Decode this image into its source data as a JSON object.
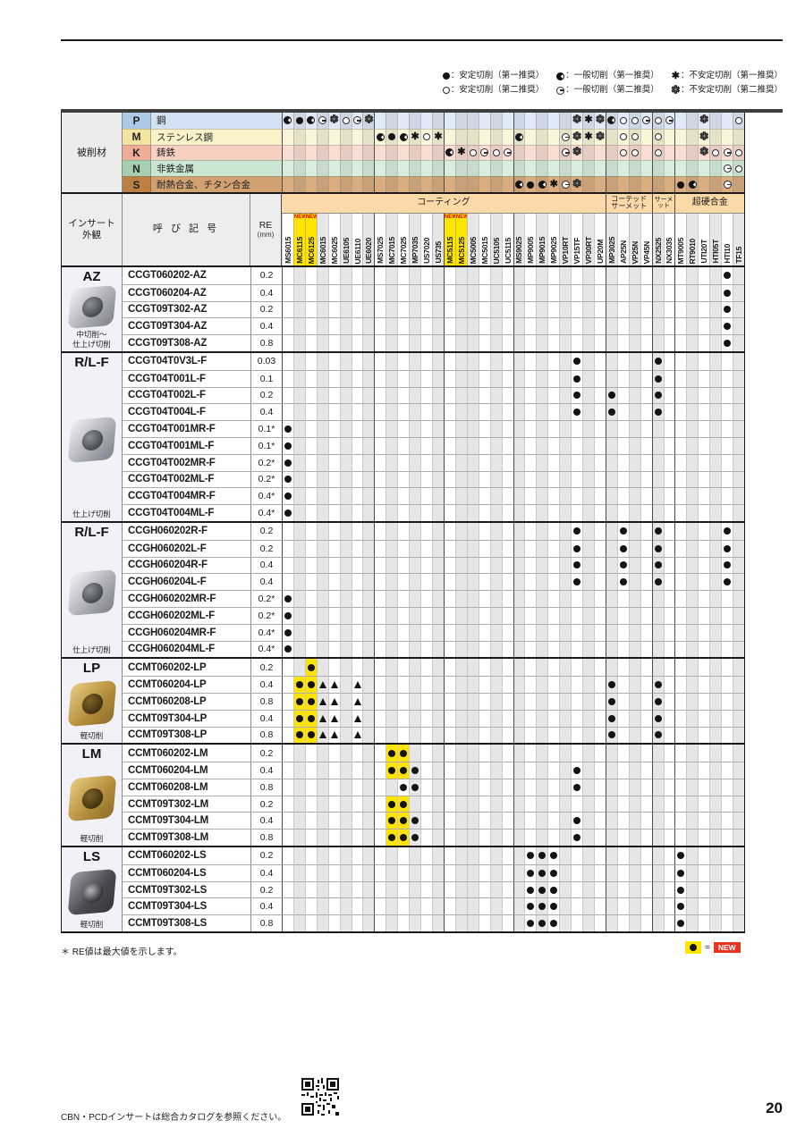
{
  "page": {
    "page_number": "20",
    "footer_note": "CBN・PCDインサートは総合カタログを参照ください。",
    "re_note": "＊ RE値は最大値を示します。",
    "new_key": {
      "eq": "=",
      "label": "NEW"
    }
  },
  "legend": {
    "rows": [
      [
        {
          "s": "s1",
          "t": "：安定切削（第一推奨）"
        },
        {
          "s": "g1",
          "t": "：一般切削（第一推奨）"
        },
        {
          "s": "u1",
          "t": "：不安定切削（第一推奨）"
        }
      ],
      [
        {
          "s": "s2",
          "t": "：安定切削（第二推奨）"
        },
        {
          "s": "g2",
          "t": "：一般切削（第二推奨）"
        },
        {
          "s": "u2",
          "t": "：不安定切削（第二推奨）"
        }
      ]
    ]
  },
  "headers": {
    "work_material": "被削材",
    "appearance": "インサート\n外観",
    "designation": "呼 び 記 号",
    "re": "RE",
    "re_unit": "(mm)"
  },
  "columns": {
    "new_tag": "NEW",
    "group_headers": [
      {
        "label": "コーティング",
        "span": 28,
        "size": "big"
      },
      {
        "label": "コーテッド\nサーメット",
        "span": 4,
        "size": "small2"
      },
      {
        "label": "サーメット",
        "span": 2,
        "size": "small1"
      },
      {
        "label": "超硬合金",
        "span": 6,
        "size": "big"
      }
    ],
    "grades": [
      {
        "name": "MS6015"
      },
      {
        "name": "MC6115",
        "new": true
      },
      {
        "name": "MC6125",
        "new": true
      },
      {
        "name": "MC6015"
      },
      {
        "name": "MC6025"
      },
      {
        "name": "UE6105"
      },
      {
        "name": "UE6110"
      },
      {
        "name": "UE6020"
      },
      {
        "name": "MS7025"
      },
      {
        "name": "MC7015"
      },
      {
        "name": "MC7025"
      },
      {
        "name": "MP7035"
      },
      {
        "name": "US7020"
      },
      {
        "name": "US735"
      },
      {
        "name": "MC5115",
        "new": true
      },
      {
        "name": "MC5125",
        "new": true
      },
      {
        "name": "MC5005"
      },
      {
        "name": "MC5015"
      },
      {
        "name": "UC5105"
      },
      {
        "name": "UC5115"
      },
      {
        "name": "MS9025"
      },
      {
        "name": "MP9005"
      },
      {
        "name": "MP9015"
      },
      {
        "name": "MP9025"
      },
      {
        "name": "VP10RT"
      },
      {
        "name": "VP15TF"
      },
      {
        "name": "VP30RT"
      },
      {
        "name": "UP20M"
      },
      {
        "name": "MP3025"
      },
      {
        "name": "AP25N"
      },
      {
        "name": "VP25N"
      },
      {
        "name": "VP45N"
      },
      {
        "name": "NX2525"
      },
      {
        "name": "NX3035"
      },
      {
        "name": "MT9005"
      },
      {
        "name": "RT9010"
      },
      {
        "name": "UTI20T"
      },
      {
        "name": "HTI05T"
      },
      {
        "name": "HTI10"
      },
      {
        "name": "TF15"
      }
    ]
  },
  "work_materials": {
    "rows": [
      {
        "code": "P",
        "name": "鋼",
        "letter_bg": "#adc9e8",
        "name_bg": "#d2e1f3",
        "band_bg": "#dfeaf6",
        "marks": {
          "1": "g1",
          "2": "s1",
          "3": "g1",
          "4": "g2",
          "5": "u2",
          "6": "s2",
          "7": "g2",
          "8": "u2",
          "26": "u2",
          "27": "u1",
          "28": "u2",
          "29": "g1",
          "30": "s2",
          "31": "s2",
          "32": "g2",
          "33": "s2",
          "34": "g2",
          "37": "u2",
          "40": "s2"
        }
      },
      {
        "code": "M",
        "name": "ステンレス鋼",
        "letter_bg": "#f2e5a2",
        "name_bg": "#f9f2c9",
        "band_bg": "#fbf6da",
        "marks": {
          "9": "g1",
          "10": "s1",
          "11": "g1",
          "12": "u1",
          "13": "s2",
          "14": "u1",
          "21": "g1",
          "25": "g2",
          "26": "u2",
          "27": "u1",
          "28": "u2",
          "30": "s2",
          "31": "s2",
          "33": "s2",
          "37": "u2"
        }
      },
      {
        "code": "K",
        "name": "鋳鉄",
        "letter_bg": "#efad96",
        "name_bg": "#f7d0c2",
        "band_bg": "#f9ddd2",
        "marks": {
          "15": "g1",
          "16": "u1",
          "17": "s2",
          "18": "g2",
          "19": "s2",
          "20": "g2",
          "25": "g2",
          "26": "u2",
          "30": "s2",
          "31": "s2",
          "33": "s2",
          "37": "u2",
          "38": "s2",
          "39": "g2",
          "40": "s2"
        }
      },
      {
        "code": "N",
        "name": "非鉄金属",
        "letter_bg": "#a5cfb0",
        "name_bg": "#cbe6d1",
        "band_bg": "#daeedd",
        "marks": {
          "39": "g2",
          "40": "s2"
        }
      },
      {
        "code": "S",
        "name": "耐熱合金、チタン合金",
        "letter_bg": "#bd7f42",
        "name_bg": "#d2a172",
        "band_bg": "#d9ad80",
        "marks": {
          "21": "g1",
          "22": "s1",
          "23": "g1",
          "24": "u1",
          "25": "g2",
          "26": "u2",
          "35": "s1",
          "36": "g1",
          "39": "g2"
        }
      }
    ]
  },
  "sections": [
    {
      "id": "az",
      "label": "AZ",
      "caption": "中切削〜\n仕上げ切削",
      "insert": "silver",
      "rows": [
        {
          "d": "CCGT060202-AZ",
          "re": "0.2",
          "m": [
            {
              "c": 39,
              "s": "s1"
            }
          ]
        },
        {
          "d": "CCGT060204-AZ",
          "re": "0.4",
          "m": [
            {
              "c": 39,
              "s": "s1"
            }
          ]
        },
        {
          "d": "CCGT09T302-AZ",
          "re": "0.2",
          "m": [
            {
              "c": 39,
              "s": "s1"
            }
          ]
        },
        {
          "d": "CCGT09T304-AZ",
          "re": "0.4",
          "m": [
            {
              "c": 39,
              "s": "s1"
            }
          ]
        },
        {
          "d": "CCGT09T308-AZ",
          "re": "0.8",
          "m": [
            {
              "c": 39,
              "s": "s1"
            }
          ]
        }
      ]
    },
    {
      "id": "rlf-ccgt",
      "label": "R/L-F",
      "caption": "仕上げ切削",
      "insert": "silver",
      "rows": [
        {
          "d": "CCGT04T0V3L-F",
          "re": "0.03",
          "m": [
            {
              "c": 26,
              "s": "s1"
            },
            {
              "c": 33,
              "s": "s1"
            }
          ]
        },
        {
          "d": "CCGT04T001L-F",
          "re": "0.1",
          "m": [
            {
              "c": 26,
              "s": "s1"
            },
            {
              "c": 33,
              "s": "s1"
            }
          ]
        },
        {
          "d": "CCGT04T002L-F",
          "re": "0.2",
          "m": [
            {
              "c": 26,
              "s": "s1"
            },
            {
              "c": 29,
              "s": "s1"
            },
            {
              "c": 33,
              "s": "s1"
            }
          ]
        },
        {
          "d": "CCGT04T004L-F",
          "re": "0.4",
          "m": [
            {
              "c": 26,
              "s": "s1"
            },
            {
              "c": 29,
              "s": "s1"
            },
            {
              "c": 33,
              "s": "s1"
            }
          ]
        },
        {
          "d": "CCGT04T001MR-F",
          "re": "0.1*",
          "m": [
            {
              "c": 1,
              "s": "s1"
            }
          ]
        },
        {
          "d": "CCGT04T001ML-F",
          "re": "0.1*",
          "m": [
            {
              "c": 1,
              "s": "s1"
            }
          ]
        },
        {
          "d": "CCGT04T002MR-F",
          "re": "0.2*",
          "m": [
            {
              "c": 1,
              "s": "s1"
            }
          ]
        },
        {
          "d": "CCGT04T002ML-F",
          "re": "0.2*",
          "m": [
            {
              "c": 1,
              "s": "s1"
            }
          ]
        },
        {
          "d": "CCGT04T004MR-F",
          "re": "0.4*",
          "m": [
            {
              "c": 1,
              "s": "s1"
            }
          ]
        },
        {
          "d": "CCGT04T004ML-F",
          "re": "0.4*",
          "m": [
            {
              "c": 1,
              "s": "s1"
            }
          ]
        }
      ]
    },
    {
      "id": "rlf-ccgh",
      "label": "R/L-F",
      "caption": "仕上げ切削",
      "insert": "silver",
      "rows": [
        {
          "d": "CCGH060202R-F",
          "re": "0.2",
          "m": [
            {
              "c": 26,
              "s": "s1"
            },
            {
              "c": 30,
              "s": "s1"
            },
            {
              "c": 33,
              "s": "s1"
            },
            {
              "c": 39,
              "s": "s1"
            }
          ]
        },
        {
          "d": "CCGH060202L-F",
          "re": "0.2",
          "m": [
            {
              "c": 26,
              "s": "s1"
            },
            {
              "c": 30,
              "s": "s1"
            },
            {
              "c": 33,
              "s": "s1"
            },
            {
              "c": 39,
              "s": "s1"
            }
          ]
        },
        {
          "d": "CCGH060204R-F",
          "re": "0.4",
          "m": [
            {
              "c": 26,
              "s": "s1"
            },
            {
              "c": 30,
              "s": "s1"
            },
            {
              "c": 33,
              "s": "s1"
            },
            {
              "c": 39,
              "s": "s1"
            }
          ]
        },
        {
          "d": "CCGH060204L-F",
          "re": "0.4",
          "m": [
            {
              "c": 26,
              "s": "s1"
            },
            {
              "c": 30,
              "s": "s1"
            },
            {
              "c": 33,
              "s": "s1"
            },
            {
              "c": 39,
              "s": "s1"
            }
          ]
        },
        {
          "d": "CCGH060202MR-F",
          "re": "0.2*",
          "m": [
            {
              "c": 1,
              "s": "s1"
            }
          ]
        },
        {
          "d": "CCGH060202ML-F",
          "re": "0.2*",
          "m": [
            {
              "c": 1,
              "s": "s1"
            }
          ]
        },
        {
          "d": "CCGH060204MR-F",
          "re": "0.4*",
          "m": [
            {
              "c": 1,
              "s": "s1"
            }
          ]
        },
        {
          "d": "CCGH060204ML-F",
          "re": "0.4*",
          "m": [
            {
              "c": 1,
              "s": "s1"
            }
          ]
        }
      ]
    },
    {
      "id": "lp",
      "label": "LP",
      "caption": "軽切削",
      "insert": "gold",
      "rows": [
        {
          "d": "CCMT060202-LP",
          "re": "0.2",
          "m": [
            {
              "c": 3,
              "s": "s1",
              "h": 1
            }
          ]
        },
        {
          "d": "CCMT060204-LP",
          "re": "0.4",
          "m": [
            {
              "c": 2,
              "s": "s1",
              "h": 1
            },
            {
              "c": 3,
              "s": "s1",
              "h": 1
            },
            {
              "c": 4,
              "s": "t"
            },
            {
              "c": 5,
              "s": "t"
            },
            {
              "c": 7,
              "s": "t"
            },
            {
              "c": 29,
              "s": "s1"
            },
            {
              "c": 33,
              "s": "s1"
            }
          ]
        },
        {
          "d": "CCMT060208-LP",
          "re": "0.8",
          "m": [
            {
              "c": 2,
              "s": "s1",
              "h": 1
            },
            {
              "c": 3,
              "s": "s1",
              "h": 1
            },
            {
              "c": 4,
              "s": "t"
            },
            {
              "c": 5,
              "s": "t"
            },
            {
              "c": 7,
              "s": "t"
            },
            {
              "c": 29,
              "s": "s1"
            },
            {
              "c": 33,
              "s": "s1"
            }
          ]
        },
        {
          "d": "CCMT09T304-LP",
          "re": "0.4",
          "m": [
            {
              "c": 2,
              "s": "s1",
              "h": 1
            },
            {
              "c": 3,
              "s": "s1",
              "h": 1
            },
            {
              "c": 4,
              "s": "t"
            },
            {
              "c": 5,
              "s": "t"
            },
            {
              "c": 7,
              "s": "t"
            },
            {
              "c": 29,
              "s": "s1"
            },
            {
              "c": 33,
              "s": "s1"
            }
          ]
        },
        {
          "d": "CCMT09T308-LP",
          "re": "0.8",
          "m": [
            {
              "c": 2,
              "s": "s1",
              "h": 1
            },
            {
              "c": 3,
              "s": "s1",
              "h": 1
            },
            {
              "c": 4,
              "s": "t"
            },
            {
              "c": 5,
              "s": "t"
            },
            {
              "c": 7,
              "s": "t"
            },
            {
              "c": 29,
              "s": "s1"
            },
            {
              "c": 33,
              "s": "s1"
            }
          ]
        }
      ]
    },
    {
      "id": "lm",
      "label": "LM",
      "caption": "軽切削",
      "insert": "gold",
      "rows": [
        {
          "d": "CCMT060202-LM",
          "re": "0.2",
          "m": [
            {
              "c": 10,
              "s": "s1",
              "h": 1
            },
            {
              "c": 11,
              "s": "s1",
              "h": 1
            }
          ]
        },
        {
          "d": "CCMT060204-LM",
          "re": "0.4",
          "m": [
            {
              "c": 10,
              "s": "s1",
              "h": 1
            },
            {
              "c": 11,
              "s": "s1",
              "h": 1
            },
            {
              "c": 12,
              "s": "s1"
            },
            {
              "c": 26,
              "s": "s1"
            }
          ]
        },
        {
          "d": "CCMT060208-LM",
          "re": "0.8",
          "m": [
            {
              "c": 11,
              "s": "s1"
            },
            {
              "c": 12,
              "s": "s1"
            },
            {
              "c": 26,
              "s": "s1"
            }
          ]
        },
        {
          "d": "CCMT09T302-LM",
          "re": "0.2",
          "m": [
            {
              "c": 10,
              "s": "s1",
              "h": 1
            },
            {
              "c": 11,
              "s": "s1",
              "h": 1
            }
          ]
        },
        {
          "d": "CCMT09T304-LM",
          "re": "0.4",
          "m": [
            {
              "c": 10,
              "s": "s1",
              "h": 1
            },
            {
              "c": 11,
              "s": "s1",
              "h": 1
            },
            {
              "c": 12,
              "s": "s1"
            },
            {
              "c": 26,
              "s": "s1"
            }
          ]
        },
        {
          "d": "CCMT09T308-LM",
          "re": "0.8",
          "m": [
            {
              "c": 10,
              "s": "s1",
              "h": 1
            },
            {
              "c": 11,
              "s": "s1",
              "h": 1
            },
            {
              "c": 12,
              "s": "s1"
            },
            {
              "c": 26,
              "s": "s1"
            }
          ]
        }
      ]
    },
    {
      "id": "ls",
      "label": "LS",
      "caption": "軽切削",
      "insert": "dark",
      "rows": [
        {
          "d": "CCMT060202-LS",
          "re": "0.2",
          "m": [
            {
              "c": 22,
              "s": "s1"
            },
            {
              "c": 23,
              "s": "s1"
            },
            {
              "c": 24,
              "s": "s1"
            },
            {
              "c": 35,
              "s": "s1"
            }
          ]
        },
        {
          "d": "CCMT060204-LS",
          "re": "0.4",
          "m": [
            {
              "c": 22,
              "s": "s1"
            },
            {
              "c": 23,
              "s": "s1"
            },
            {
              "c": 24,
              "s": "s1"
            },
            {
              "c": 35,
              "s": "s1"
            }
          ]
        },
        {
          "d": "CCMT09T302-LS",
          "re": "0.2",
          "m": [
            {
              "c": 22,
              "s": "s1"
            },
            {
              "c": 23,
              "s": "s1"
            },
            {
              "c": 24,
              "s": "s1"
            },
            {
              "c": 35,
              "s": "s1"
            }
          ]
        },
        {
          "d": "CCMT09T304-LS",
          "re": "0.4",
          "m": [
            {
              "c": 22,
              "s": "s1"
            },
            {
              "c": 23,
              "s": "s1"
            },
            {
              "c": 24,
              "s": "s1"
            },
            {
              "c": 35,
              "s": "s1"
            }
          ]
        },
        {
          "d": "CCMT09T308-LS",
          "re": "0.8",
          "m": [
            {
              "c": 22,
              "s": "s1"
            },
            {
              "c": 23,
              "s": "s1"
            },
            {
              "c": 24,
              "s": "s1"
            },
            {
              "c": 35,
              "s": "s1"
            }
          ]
        }
      ]
    }
  ]
}
